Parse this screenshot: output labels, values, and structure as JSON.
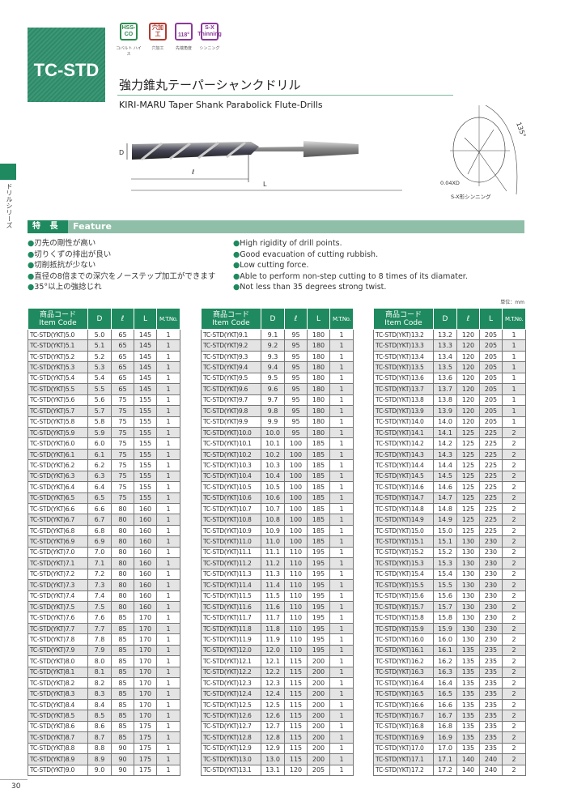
{
  "header": {
    "product_code": "TC-STD",
    "title_jp": "強力錐丸テーパーシャンクドリル",
    "title_en": "KIRI-MARU Taper Shank Parabolick Flute-Drills",
    "icons": [
      {
        "label": "HSS-CO",
        "caption": "コバルト ハイス",
        "color": "#2e8a4f"
      },
      {
        "label": "穴加工",
        "caption": "穴加工",
        "color": "#b03a2e"
      },
      {
        "label": "118°",
        "caption": "先端角度",
        "color": "#8a3a9a"
      },
      {
        "label": "S-X Thinning",
        "caption": "シンニング",
        "color": "#8a3a9a"
      }
    ]
  },
  "side_tab": {
    "label": "ドリルシリーズ"
  },
  "diagram": {
    "dim_D": "D",
    "dim_l": "ℓ",
    "dim_L": "L",
    "angle": "135°",
    "thinning_dim": "0.04XD",
    "thinning_caption": "S-X形シンニング"
  },
  "feature": {
    "label_jp": "特 長",
    "label_en": "Feature",
    "items_jp": [
      "刃先の剛性が高い",
      "切りくずの排出が良い",
      "切削抵抗が少ない",
      "直径の8倍までの深穴をノーステップ加工ができます",
      "35°以上の強捻じれ"
    ],
    "items_en": [
      "High rigidity of drill points.",
      "Good evacuation of cutting rubbish.",
      "Low cutting force.",
      "Able to perform non-step cutting to 8 times of its diamater.",
      "Not less than 35 degrees strong twist."
    ]
  },
  "unit": "単位：mm",
  "table_headers": {
    "code_jp": "商品コード",
    "code_en": "Item Code",
    "D": "D",
    "l": "ℓ",
    "L": "L",
    "mt": "M.T.No."
  },
  "tables": [
    [
      [
        "TC-STD(YKT)5.0",
        "5.0",
        "65",
        "145",
        "1"
      ],
      [
        "TC-STD(YKT)5.1",
        "5.1",
        "65",
        "145",
        "1"
      ],
      [
        "TC-STD(YKT)5.2",
        "5.2",
        "65",
        "145",
        "1"
      ],
      [
        "TC-STD(YKT)5.3",
        "5.3",
        "65",
        "145",
        "1"
      ],
      [
        "TC-STD(YKT)5.4",
        "5.4",
        "65",
        "145",
        "1"
      ],
      [
        "TC-STD(YKT)5.5",
        "5.5",
        "65",
        "145",
        "1"
      ],
      [
        "TC-STD(YKT)5.6",
        "5.6",
        "75",
        "155",
        "1"
      ],
      [
        "TC-STD(YKT)5.7",
        "5.7",
        "75",
        "155",
        "1"
      ],
      [
        "TC-STD(YKT)5.8",
        "5.8",
        "75",
        "155",
        "1"
      ],
      [
        "TC-STD(YKT)5.9",
        "5.9",
        "75",
        "155",
        "1"
      ],
      [
        "TC-STD(YKT)6.0",
        "6.0",
        "75",
        "155",
        "1"
      ],
      [
        "TC-STD(YKT)6.1",
        "6.1",
        "75",
        "155",
        "1"
      ],
      [
        "TC-STD(YKT)6.2",
        "6.2",
        "75",
        "155",
        "1"
      ],
      [
        "TC-STD(YKT)6.3",
        "6.3",
        "75",
        "155",
        "1"
      ],
      [
        "TC-STD(YKT)6.4",
        "6.4",
        "75",
        "155",
        "1"
      ],
      [
        "TC-STD(YKT)6.5",
        "6.5",
        "75",
        "155",
        "1"
      ],
      [
        "TC-STD(YKT)6.6",
        "6.6",
        "80",
        "160",
        "1"
      ],
      [
        "TC-STD(YKT)6.7",
        "6.7",
        "80",
        "160",
        "1"
      ],
      [
        "TC-STD(YKT)6.8",
        "6.8",
        "80",
        "160",
        "1"
      ],
      [
        "TC-STD(YKT)6.9",
        "6.9",
        "80",
        "160",
        "1"
      ],
      [
        "TC-STD(YKT)7.0",
        "7.0",
        "80",
        "160",
        "1"
      ],
      [
        "TC-STD(YKT)7.1",
        "7.1",
        "80",
        "160",
        "1"
      ],
      [
        "TC-STD(YKT)7.2",
        "7.2",
        "80",
        "160",
        "1"
      ],
      [
        "TC-STD(YKT)7.3",
        "7.3",
        "80",
        "160",
        "1"
      ],
      [
        "TC-STD(YKT)7.4",
        "7.4",
        "80",
        "160",
        "1"
      ],
      [
        "TC-STD(YKT)7.5",
        "7.5",
        "80",
        "160",
        "1"
      ],
      [
        "TC-STD(YKT)7.6",
        "7.6",
        "85",
        "170",
        "1"
      ],
      [
        "TC-STD(YKT)7.7",
        "7.7",
        "85",
        "170",
        "1"
      ],
      [
        "TC-STD(YKT)7.8",
        "7.8",
        "85",
        "170",
        "1"
      ],
      [
        "TC-STD(YKT)7.9",
        "7.9",
        "85",
        "170",
        "1"
      ],
      [
        "TC-STD(YKT)8.0",
        "8.0",
        "85",
        "170",
        "1"
      ],
      [
        "TC-STD(YKT)8.1",
        "8.1",
        "85",
        "170",
        "1"
      ],
      [
        "TC-STD(YKT)8.2",
        "8.2",
        "85",
        "170",
        "1"
      ],
      [
        "TC-STD(YKT)8.3",
        "8.3",
        "85",
        "170",
        "1"
      ],
      [
        "TC-STD(YKT)8.4",
        "8.4",
        "85",
        "170",
        "1"
      ],
      [
        "TC-STD(YKT)8.5",
        "8.5",
        "85",
        "170",
        "1"
      ],
      [
        "TC-STD(YKT)8.6",
        "8.6",
        "85",
        "175",
        "1"
      ],
      [
        "TC-STD(YKT)8.7",
        "8.7",
        "85",
        "175",
        "1"
      ],
      [
        "TC-STD(YKT)8.8",
        "8.8",
        "90",
        "175",
        "1"
      ],
      [
        "TC-STD(YKT)8.9",
        "8.9",
        "90",
        "175",
        "1"
      ],
      [
        "TC-STD(YKT)9.0",
        "9.0",
        "90",
        "175",
        "1"
      ]
    ],
    [
      [
        "TC-STD(YKT)9.1",
        "9.1",
        "95",
        "180",
        "1"
      ],
      [
        "TC-STD(YKT)9.2",
        "9.2",
        "95",
        "180",
        "1"
      ],
      [
        "TC-STD(YKT)9.3",
        "9.3",
        "95",
        "180",
        "1"
      ],
      [
        "TC-STD(YKT)9.4",
        "9.4",
        "95",
        "180",
        "1"
      ],
      [
        "TC-STD(YKT)9.5",
        "9.5",
        "95",
        "180",
        "1"
      ],
      [
        "TC-STD(YKT)9.6",
        "9.6",
        "95",
        "180",
        "1"
      ],
      [
        "TC-STD(YKT)9.7",
        "9.7",
        "95",
        "180",
        "1"
      ],
      [
        "TC-STD(YKT)9.8",
        "9.8",
        "95",
        "180",
        "1"
      ],
      [
        "TC-STD(YKT)9.9",
        "9.9",
        "95",
        "180",
        "1"
      ],
      [
        "TC-STD(YKT)10.0",
        "10.0",
        "95",
        "180",
        "1"
      ],
      [
        "TC-STD(YKT)10.1",
        "10.1",
        "100",
        "185",
        "1"
      ],
      [
        "TC-STD(YKT)10.2",
        "10.2",
        "100",
        "185",
        "1"
      ],
      [
        "TC-STD(YKT)10.3",
        "10.3",
        "100",
        "185",
        "1"
      ],
      [
        "TC-STD(YKT)10.4",
        "10.4",
        "100",
        "185",
        "1"
      ],
      [
        "TC-STD(YKT)10.5",
        "10.5",
        "100",
        "185",
        "1"
      ],
      [
        "TC-STD(YKT)10.6",
        "10.6",
        "100",
        "185",
        "1"
      ],
      [
        "TC-STD(YKT)10.7",
        "10.7",
        "100",
        "185",
        "1"
      ],
      [
        "TC-STD(YKT)10.8",
        "10.8",
        "100",
        "185",
        "1"
      ],
      [
        "TC-STD(YKT)10.9",
        "10.9",
        "100",
        "185",
        "1"
      ],
      [
        "TC-STD(YKT)11.0",
        "11.0",
        "100",
        "185",
        "1"
      ],
      [
        "TC-STD(YKT)11.1",
        "11.1",
        "110",
        "195",
        "1"
      ],
      [
        "TC-STD(YKT)11.2",
        "11.2",
        "110",
        "195",
        "1"
      ],
      [
        "TC-STD(YKT)11.3",
        "11.3",
        "110",
        "195",
        "1"
      ],
      [
        "TC-STD(YKT)11.4",
        "11.4",
        "110",
        "195",
        "1"
      ],
      [
        "TC-STD(YKT)11.5",
        "11.5",
        "110",
        "195",
        "1"
      ],
      [
        "TC-STD(YKT)11.6",
        "11.6",
        "110",
        "195",
        "1"
      ],
      [
        "TC-STD(YKT)11.7",
        "11.7",
        "110",
        "195",
        "1"
      ],
      [
        "TC-STD(YKT)11.8",
        "11.8",
        "110",
        "195",
        "1"
      ],
      [
        "TC-STD(YKT)11.9",
        "11.9",
        "110",
        "195",
        "1"
      ],
      [
        "TC-STD(YKT)12.0",
        "12.0",
        "110",
        "195",
        "1"
      ],
      [
        "TC-STD(YKT)12.1",
        "12.1",
        "115",
        "200",
        "1"
      ],
      [
        "TC-STD(YKT)12.2",
        "12.2",
        "115",
        "200",
        "1"
      ],
      [
        "TC-STD(YKT)12.3",
        "12.3",
        "115",
        "200",
        "1"
      ],
      [
        "TC-STD(YKT)12.4",
        "12.4",
        "115",
        "200",
        "1"
      ],
      [
        "TC-STD(YKT)12.5",
        "12.5",
        "115",
        "200",
        "1"
      ],
      [
        "TC-STD(YKT)12.6",
        "12.6",
        "115",
        "200",
        "1"
      ],
      [
        "TC-STD(YKT)12.7",
        "12.7",
        "115",
        "200",
        "1"
      ],
      [
        "TC-STD(YKT)12.8",
        "12.8",
        "115",
        "200",
        "1"
      ],
      [
        "TC-STD(YKT)12.9",
        "12.9",
        "115",
        "200",
        "1"
      ],
      [
        "TC-STD(YKT)13.0",
        "13.0",
        "115",
        "200",
        "1"
      ],
      [
        "TC-STD(YKT)13.1",
        "13.1",
        "120",
        "205",
        "1"
      ]
    ],
    [
      [
        "TC-STD(YKT)13.2",
        "13.2",
        "120",
        "205",
        "1"
      ],
      [
        "TC-STD(YKT)13.3",
        "13.3",
        "120",
        "205",
        "1"
      ],
      [
        "TC-STD(YKT)13.4",
        "13.4",
        "120",
        "205",
        "1"
      ],
      [
        "TC-STD(YKT)13.5",
        "13.5",
        "120",
        "205",
        "1"
      ],
      [
        "TC-STD(YKT)13.6",
        "13.6",
        "120",
        "205",
        "1"
      ],
      [
        "TC-STD(YKT)13.7",
        "13.7",
        "120",
        "205",
        "1"
      ],
      [
        "TC-STD(YKT)13.8",
        "13.8",
        "120",
        "205",
        "1"
      ],
      [
        "TC-STD(YKT)13.9",
        "13.9",
        "120",
        "205",
        "1"
      ],
      [
        "TC-STD(YKT)14.0",
        "14.0",
        "120",
        "205",
        "1"
      ],
      [
        "TC-STD(YKT)14.1",
        "14.1",
        "125",
        "225",
        "2"
      ],
      [
        "TC-STD(YKT)14.2",
        "14.2",
        "125",
        "225",
        "2"
      ],
      [
        "TC-STD(YKT)14.3",
        "14.3",
        "125",
        "225",
        "2"
      ],
      [
        "TC-STD(YKT)14.4",
        "14.4",
        "125",
        "225",
        "2"
      ],
      [
        "TC-STD(YKT)14.5",
        "14.5",
        "125",
        "225",
        "2"
      ],
      [
        "TC-STD(YKT)14.6",
        "14.6",
        "125",
        "225",
        "2"
      ],
      [
        "TC-STD(YKT)14.7",
        "14.7",
        "125",
        "225",
        "2"
      ],
      [
        "TC-STD(YKT)14.8",
        "14.8",
        "125",
        "225",
        "2"
      ],
      [
        "TC-STD(YKT)14.9",
        "14.9",
        "125",
        "225",
        "2"
      ],
      [
        "TC-STD(YKT)15.0",
        "15.0",
        "125",
        "225",
        "2"
      ],
      [
        "TC-STD(YKT)15.1",
        "15.1",
        "130",
        "230",
        "2"
      ],
      [
        "TC-STD(YKT)15.2",
        "15.2",
        "130",
        "230",
        "2"
      ],
      [
        "TC-STD(YKT)15.3",
        "15.3",
        "130",
        "230",
        "2"
      ],
      [
        "TC-STD(YKT)15.4",
        "15.4",
        "130",
        "230",
        "2"
      ],
      [
        "TC-STD(YKT)15.5",
        "15.5",
        "130",
        "230",
        "2"
      ],
      [
        "TC-STD(YKT)15.6",
        "15.6",
        "130",
        "230",
        "2"
      ],
      [
        "TC-STD(YKT)15.7",
        "15.7",
        "130",
        "230",
        "2"
      ],
      [
        "TC-STD(YKT)15.8",
        "15.8",
        "130",
        "230",
        "2"
      ],
      [
        "TC-STD(YKT)15.9",
        "15.9",
        "130",
        "230",
        "2"
      ],
      [
        "TC-STD(YKT)16.0",
        "16.0",
        "130",
        "230",
        "2"
      ],
      [
        "TC-STD(YKT)16.1",
        "16.1",
        "135",
        "235",
        "2"
      ],
      [
        "TC-STD(YKT)16.2",
        "16.2",
        "135",
        "235",
        "2"
      ],
      [
        "TC-STD(YKT)16.3",
        "16.3",
        "135",
        "235",
        "2"
      ],
      [
        "TC-STD(YKT)16.4",
        "16.4",
        "135",
        "235",
        "2"
      ],
      [
        "TC-STD(YKT)16.5",
        "16.5",
        "135",
        "235",
        "2"
      ],
      [
        "TC-STD(YKT)16.6",
        "16.6",
        "135",
        "235",
        "2"
      ],
      [
        "TC-STD(YKT)16.7",
        "16.7",
        "135",
        "235",
        "2"
      ],
      [
        "TC-STD(YKT)16.8",
        "16.8",
        "135",
        "235",
        "2"
      ],
      [
        "TC-STD(YKT)16.9",
        "16.9",
        "135",
        "235",
        "2"
      ],
      [
        "TC-STD(YKT)17.0",
        "17.0",
        "135",
        "235",
        "2"
      ],
      [
        "TC-STD(YKT)17.1",
        "17.1",
        "140",
        "240",
        "2"
      ],
      [
        "TC-STD(YKT)17.2",
        "17.2",
        "140",
        "240",
        "2"
      ]
    ]
  ],
  "page_number": "30"
}
